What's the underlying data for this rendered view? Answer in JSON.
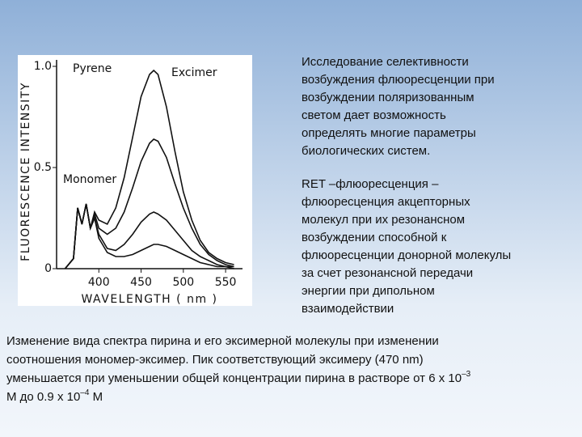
{
  "chart_data": {
    "type": "line",
    "y_label": "FLUORESCENCE INTENSITY",
    "x_label": "WAVELENGTH ( nm )",
    "annotations": [
      "Pyrene",
      "Excimer",
      "Monomer"
    ],
    "x": [
      360,
      370,
      375,
      380,
      385,
      390,
      395,
      400,
      410,
      420,
      430,
      440,
      450,
      460,
      465,
      470,
      480,
      490,
      500,
      510,
      520,
      530,
      540,
      550,
      560
    ],
    "series": [
      {
        "color": "#111111",
        "values": [
          0,
          0.05,
          0.3,
          0.22,
          0.32,
          0.2,
          0.28,
          0.24,
          0.22,
          0.3,
          0.45,
          0.65,
          0.85,
          0.96,
          0.98,
          0.96,
          0.8,
          0.58,
          0.38,
          0.24,
          0.14,
          0.08,
          0.05,
          0.03,
          0.02
        ]
      },
      {
        "color": "#111111",
        "values": [
          0,
          0.05,
          0.3,
          0.22,
          0.32,
          0.2,
          0.27,
          0.2,
          0.17,
          0.2,
          0.28,
          0.4,
          0.53,
          0.62,
          0.64,
          0.63,
          0.55,
          0.42,
          0.3,
          0.2,
          0.12,
          0.07,
          0.04,
          0.02,
          0.01
        ]
      },
      {
        "color": "#111111",
        "values": [
          0,
          0.05,
          0.3,
          0.22,
          0.32,
          0.2,
          0.25,
          0.17,
          0.1,
          0.09,
          0.12,
          0.17,
          0.23,
          0.27,
          0.28,
          0.27,
          0.24,
          0.19,
          0.14,
          0.09,
          0.06,
          0.04,
          0.02,
          0.01,
          0.01
        ]
      },
      {
        "color": "#111111",
        "values": [
          0,
          0.05,
          0.3,
          0.22,
          0.32,
          0.2,
          0.25,
          0.15,
          0.08,
          0.06,
          0.06,
          0.07,
          0.09,
          0.11,
          0.12,
          0.12,
          0.11,
          0.09,
          0.07,
          0.05,
          0.03,
          0.02,
          0.01,
          0.01,
          0
        ]
      }
    ],
    "xlim": [
      350,
      570
    ],
    "xticks": [
      400,
      450,
      500,
      550
    ],
    "ylim": [
      0,
      1
    ],
    "yticks": [
      0,
      0.5,
      {
        "value": 1,
        "label": "1.0"
      }
    ]
  },
  "right_text": [
    [
      "Исследование селективности",
      "возбуждения флюоресценции при",
      "возбуждении поляризованным",
      "светом дает возможность",
      "определять многие параметры",
      "биологических систем."
    ],
    [
      "RET –флюоресценция –",
      "флюоресценция акцепторных",
      "молекул при их резонансном",
      "возбуждении способной к",
      "флюоресценции донорной молекулы",
      "за счет резонансной передачи",
      "энергии при дипольном",
      "взаимодействии"
    ]
  ],
  "bottom_text": [
    [
      "Изменение вида спектра пирина и его эксимерной молекулы при изменении"
    ],
    [
      "соотношения мономер-эксимер. Пик соответствующий  эксимеру (470 nm)"
    ],
    [
      "уменьшается при уменьшении общей концентрации пирина в растворе от 6 х 10",
      "–3"
    ],
    [
      "М  до 0.9 х 10",
      "–4",
      " М"
    ]
  ]
}
